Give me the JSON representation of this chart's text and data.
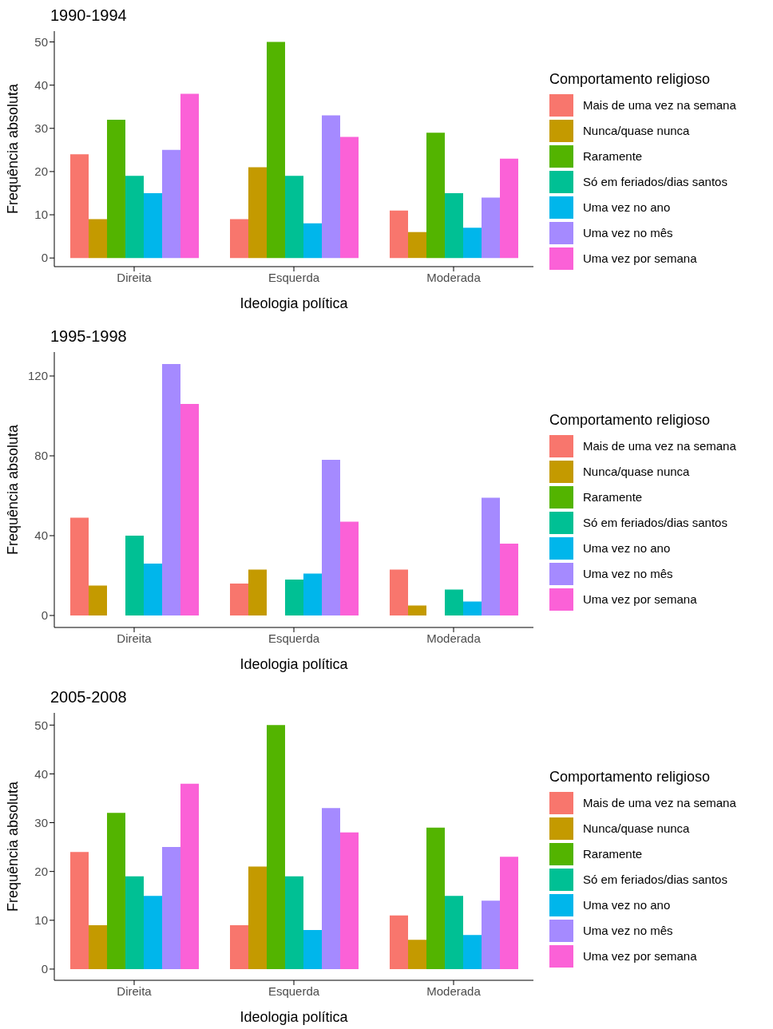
{
  "chart_data": [
    {
      "type": "bar",
      "title": "1990-1994",
      "xlabel": "Ideologia política",
      "ylabel": "Frequência absoluta",
      "legend_title": "Comportamento religioso",
      "categories": [
        "Direita",
        "Esquerda",
        "Moderada"
      ],
      "ylim": [
        -2,
        52.5
      ],
      "yticks": [
        0,
        10,
        20,
        30,
        40,
        50
      ],
      "grid": false,
      "legend": "right",
      "series": [
        {
          "name": "Mais de uma vez na semana",
          "color": "#f8766d",
          "values": [
            24,
            9,
            11
          ]
        },
        {
          "name": "Nunca/quase nunca",
          "color": "#c49a00",
          "values": [
            9,
            21,
            6
          ]
        },
        {
          "name": "Raramente",
          "color": "#53b400",
          "values": [
            32,
            50,
            29
          ]
        },
        {
          "name": "Só em feriados/dias santos",
          "color": "#00c094",
          "values": [
            19,
            19,
            15
          ]
        },
        {
          "name": "Uma vez no ano",
          "color": "#00b6eb",
          "values": [
            15,
            8,
            7
          ]
        },
        {
          "name": "Uma vez no mês",
          "color": "#a58aff",
          "values": [
            25,
            33,
            14
          ]
        },
        {
          "name": "Uma vez por semana",
          "color": "#fb61d7",
          "values": [
            38,
            28,
            23
          ]
        }
      ]
    },
    {
      "type": "bar",
      "title": "1995-1998",
      "xlabel": "Ideologia política",
      "ylabel": "Frequência absoluta",
      "legend_title": "Comportamento religioso",
      "categories": [
        "Direita",
        "Esquerda",
        "Moderada"
      ],
      "ylim": [
        -6,
        132
      ],
      "yticks": [
        0,
        40,
        80,
        120
      ],
      "grid": false,
      "legend": "right",
      "series": [
        {
          "name": "Mais de uma vez na semana",
          "color": "#f8766d",
          "values": [
            49,
            16,
            23
          ]
        },
        {
          "name": "Nunca/quase nunca",
          "color": "#c49a00",
          "values": [
            15,
            23,
            5
          ]
        },
        {
          "name": "Raramente",
          "color": "#53b400",
          "values": [
            null,
            null,
            null
          ]
        },
        {
          "name": "Só em feriados/dias santos",
          "color": "#00c094",
          "values": [
            40,
            18,
            13
          ]
        },
        {
          "name": "Uma vez no ano",
          "color": "#00b6eb",
          "values": [
            26,
            21,
            7
          ]
        },
        {
          "name": "Uma vez no mês",
          "color": "#a58aff",
          "values": [
            126,
            78,
            59
          ]
        },
        {
          "name": "Uma vez por semana",
          "color": "#fb61d7",
          "values": [
            106,
            47,
            36
          ]
        }
      ]
    },
    {
      "type": "bar",
      "title": "2005-2008",
      "xlabel": "Ideologia política",
      "ylabel": "Frequência absoluta",
      "legend_title": "Comportamento religioso",
      "categories": [
        "Direita",
        "Esquerda",
        "Moderada"
      ],
      "ylim": [
        -2.3,
        52.5
      ],
      "yticks": [
        0,
        10,
        20,
        30,
        40,
        50
      ],
      "grid": false,
      "legend": "right",
      "series": [
        {
          "name": "Mais de uma vez na semana",
          "color": "#f8766d",
          "values": [
            24,
            9,
            11
          ]
        },
        {
          "name": "Nunca/quase nunca",
          "color": "#c49a00",
          "values": [
            9,
            21,
            6
          ]
        },
        {
          "name": "Raramente",
          "color": "#53b400",
          "values": [
            32,
            50,
            29
          ]
        },
        {
          "name": "Só em feriados/dias santos",
          "color": "#00c094",
          "values": [
            19,
            19,
            15
          ]
        },
        {
          "name": "Uma vez no ano",
          "color": "#00b6eb",
          "values": [
            15,
            8,
            7
          ]
        },
        {
          "name": "Uma vez no mês",
          "color": "#a58aff",
          "values": [
            25,
            33,
            14
          ]
        },
        {
          "name": "Uma vez por semana",
          "color": "#fb61d7",
          "values": [
            38,
            28,
            23
          ]
        }
      ]
    }
  ]
}
